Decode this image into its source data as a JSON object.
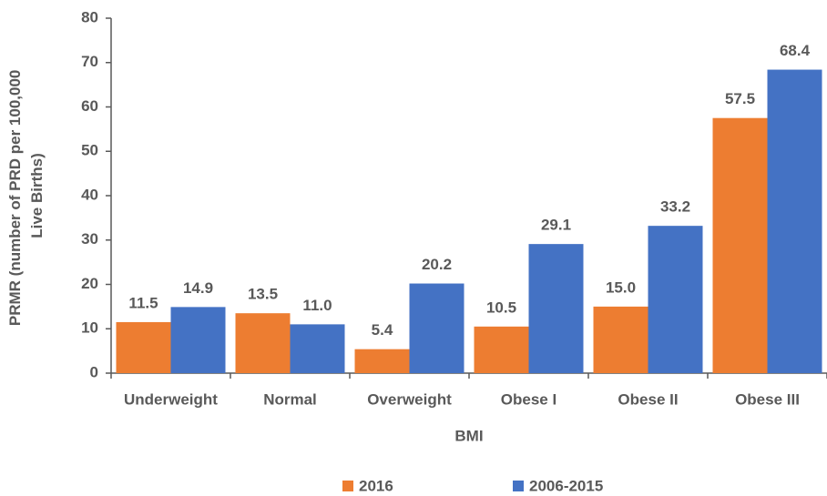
{
  "chart_data": {
    "type": "bar",
    "xlabel": "BMI",
    "ylabel": [
      "PRMR (number of PRD per 100,000",
      "Live Births)"
    ],
    "categories": [
      "Underweight",
      "Normal",
      "Overweight",
      "Obese I",
      "Obese II",
      "Obese III"
    ],
    "series": [
      {
        "name": "2016",
        "color": "#ed7d31",
        "values": [
          11.5,
          13.5,
          5.4,
          10.5,
          15.0,
          57.5
        ],
        "value_labels": [
          "11.5",
          "13.5",
          "5.4",
          "10.5",
          "15.0",
          "57.5"
        ]
      },
      {
        "name": "2006-2015",
        "color": "#4472c4",
        "values": [
          14.9,
          11.0,
          20.2,
          29.1,
          33.2,
          68.4
        ],
        "value_labels": [
          "14.9",
          "11.0",
          "20.2",
          "29.1",
          "33.2",
          "68.4"
        ]
      }
    ],
    "ylim": [
      0,
      80
    ],
    "yticks": [
      0,
      10,
      20,
      30,
      40,
      50,
      60,
      70,
      80
    ],
    "grid": false,
    "legend": "bottom"
  }
}
